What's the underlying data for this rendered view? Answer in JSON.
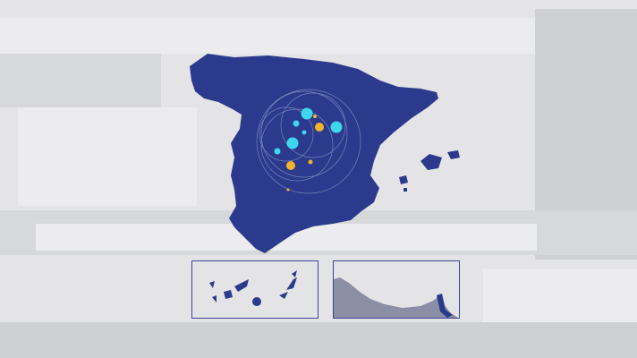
{
  "colors": {
    "map_fill": "#2b3a8c",
    "inset_border": "#3a4590",
    "dot_cyan": "#3fd6f0",
    "dot_orange": "#f2b42a",
    "background": "#e4e4e6"
  },
  "map": {
    "regions": [
      "mainland",
      "balearic-islands",
      "canary-islands",
      "ceuta-melilla"
    ]
  }
}
